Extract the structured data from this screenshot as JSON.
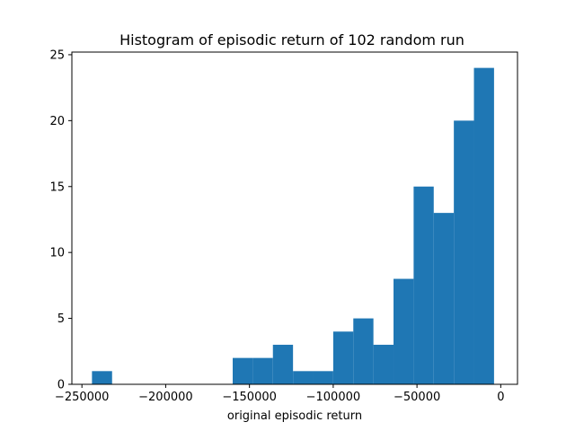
{
  "chart_data": {
    "type": "bar",
    "title": "Histogram of episodic return of 102 random run",
    "xlabel": "original episodic return",
    "ylabel": "",
    "xlim": [
      -256000,
      10000
    ],
    "ylim": [
      0,
      25.2
    ],
    "xticks": [
      -250000,
      -200000,
      -150000,
      -100000,
      -50000,
      0
    ],
    "xtick_labels": [
      "−250000",
      "−200000",
      "−150000",
      "−100000",
      "−50000",
      "0"
    ],
    "yticks": [
      0,
      5,
      10,
      15,
      20,
      25
    ],
    "ytick_labels": [
      "0",
      "5",
      "10",
      "15",
      "20",
      "25"
    ],
    "grid": false,
    "color": "#1f77b4",
    "bins": [
      {
        "x0": -244000,
        "x1": -232000,
        "count": 1
      },
      {
        "x0": -232000,
        "x1": -220000,
        "count": 0
      },
      {
        "x0": -220000,
        "x1": -208000,
        "count": 0
      },
      {
        "x0": -208000,
        "x1": -196000,
        "count": 0
      },
      {
        "x0": -196000,
        "x1": -184000,
        "count": 0
      },
      {
        "x0": -184000,
        "x1": -172000,
        "count": 0
      },
      {
        "x0": -172000,
        "x1": -160000,
        "count": 0
      },
      {
        "x0": -160000,
        "x1": -148000,
        "count": 2
      },
      {
        "x0": -148000,
        "x1": -136000,
        "count": 2
      },
      {
        "x0": -136000,
        "x1": -124000,
        "count": 3
      },
      {
        "x0": -124000,
        "x1": -112000,
        "count": 1
      },
      {
        "x0": -112000,
        "x1": -100000,
        "count": 1
      },
      {
        "x0": -100000,
        "x1": -88000,
        "count": 4
      },
      {
        "x0": -88000,
        "x1": -76000,
        "count": 5
      },
      {
        "x0": -76000,
        "x1": -64000,
        "count": 3
      },
      {
        "x0": -64000,
        "x1": -52000,
        "count": 8
      },
      {
        "x0": -52000,
        "x1": -40000,
        "count": 15
      },
      {
        "x0": -40000,
        "x1": -28000,
        "count": 13
      },
      {
        "x0": -28000,
        "x1": -16000,
        "count": 20
      },
      {
        "x0": -16000,
        "x1": -4000,
        "count": 24
      }
    ]
  }
}
